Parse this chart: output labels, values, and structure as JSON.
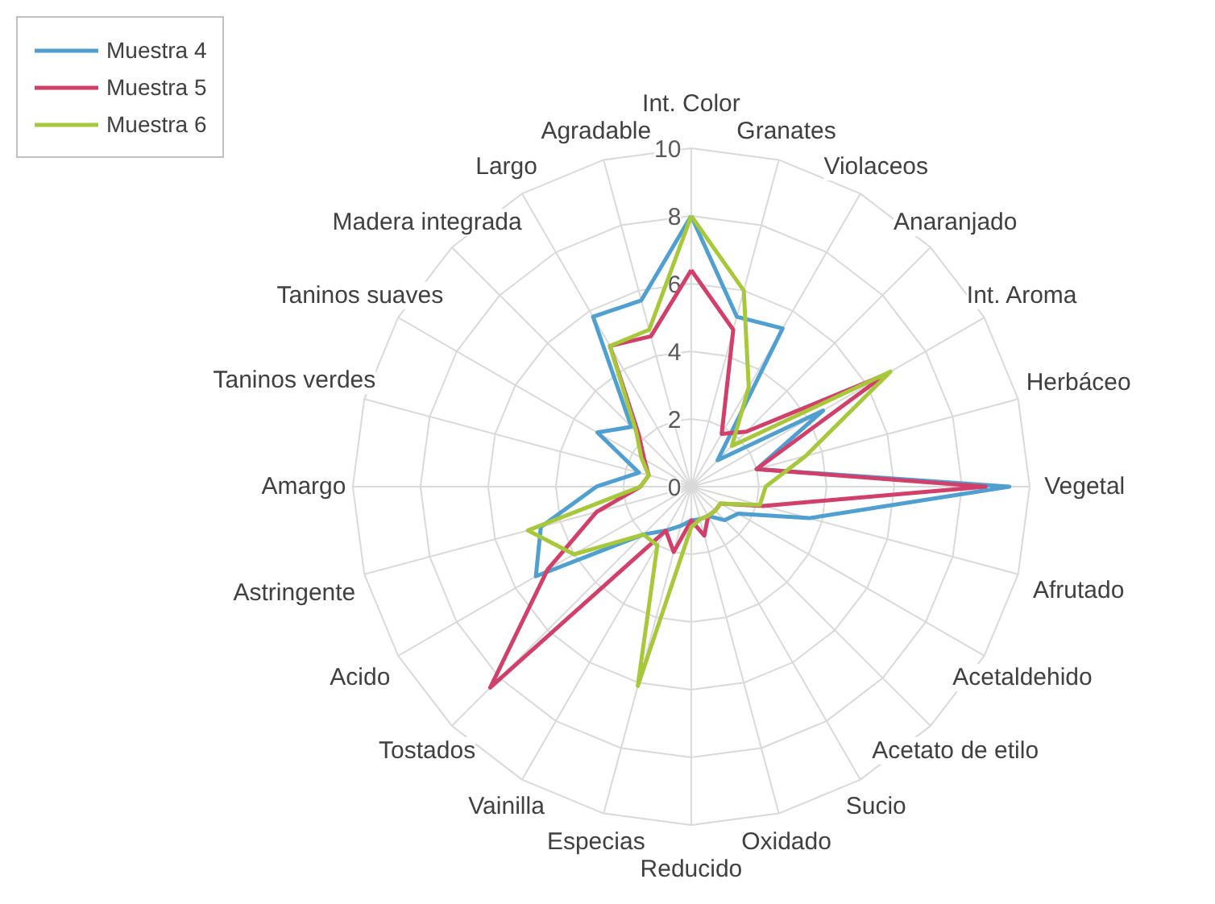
{
  "chart_data": {
    "type": "radar",
    "categories": [
      "Int. Color",
      "Granates",
      "Violaceos",
      "Anaranjado",
      "Int. Aroma",
      "Herbáceo",
      "Vegetal",
      "Afrutado",
      "Acetaldehido",
      "Acetato de etilo",
      "Sucio",
      "Oxidado",
      "Reducido",
      "Especias",
      "Vainilla",
      "Tostados",
      "Acido",
      "Astringente",
      "Amargo",
      "Taninos verdes",
      "Taninos suaves",
      "Madera integrada",
      "Largo",
      "Agradable"
    ],
    "series": [
      {
        "name": "Muestra 4",
        "color": "#4f9fd0",
        "values": [
          8,
          5.2,
          5.4,
          1.1,
          4.5,
          2,
          9.4,
          3.6,
          1.6,
          1.4,
          1,
          1,
          1,
          1.2,
          1.5,
          2,
          5.3,
          4.6,
          2.8,
          1.6,
          3.2,
          2.5,
          5.8,
          5.7
        ]
      },
      {
        "name": "Muestra 5",
        "color": "#d0406a",
        "values": [
          6.4,
          4.8,
          1.8,
          2.3,
          6.6,
          2,
          8.7,
          2.2,
          1,
          1,
          1,
          1.5,
          1,
          2,
          1.5,
          8.4,
          4.9,
          2.9,
          1.5,
          1.3,
          1.6,
          2.2,
          4.8,
          4.6
        ]
      },
      {
        "name": "Muestra 6",
        "color": "#a8c83c",
        "values": [
          8,
          6,
          3.4,
          1.7,
          6.8,
          3.5,
          2.2,
          2.1,
          1,
          1,
          1,
          1,
          1.2,
          6.1,
          2,
          2,
          4,
          5,
          1.5,
          1.3,
          1.7,
          2.3,
          4.8,
          4.8
        ]
      }
    ],
    "ylim": [
      0,
      10
    ],
    "yticks": [
      0,
      2,
      4,
      6,
      8,
      10
    ],
    "grid": true,
    "legend": "top left",
    "marker": "none",
    "line_style": "solid"
  }
}
